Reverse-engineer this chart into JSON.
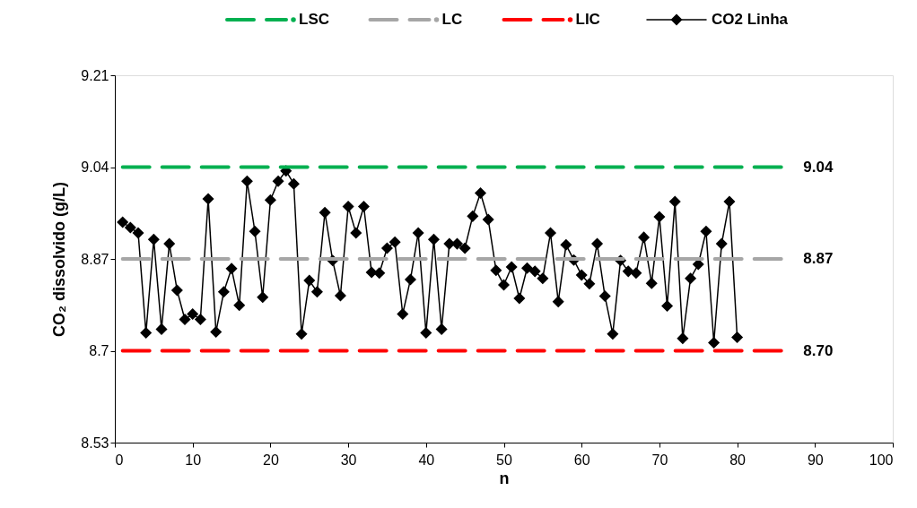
{
  "chart_data": {
    "type": "line",
    "xlabel": "n",
    "ylabel": "CO₂ dissolvido (g/L)",
    "xlim": [
      0,
      100
    ],
    "xticks": [
      0,
      10,
      20,
      30,
      40,
      50,
      60,
      70,
      80,
      90,
      100
    ],
    "ylim": [
      8.53,
      9.21
    ],
    "yticks": [
      8.53,
      8.7,
      8.87,
      9.04,
      9.21
    ],
    "grid": false,
    "legend": "top",
    "marker": "diamond",
    "line_style": "solid",
    "series": [
      {
        "name": "CO2  Linha",
        "color": "#000000",
        "x": [
          1,
          2,
          3,
          4,
          5,
          6,
          7,
          8,
          9,
          10,
          11,
          12,
          13,
          14,
          15,
          16,
          17,
          18,
          19,
          20,
          21,
          22,
          23,
          24,
          25,
          26,
          27,
          28,
          29,
          30,
          31,
          32,
          33,
          34,
          35,
          36,
          37,
          38,
          39,
          40,
          41,
          42,
          43,
          44,
          45,
          46,
          47,
          48,
          49,
          50,
          51,
          52,
          53,
          54,
          55,
          56,
          57,
          58,
          59,
          60,
          61,
          62,
          63,
          64,
          65,
          66,
          67,
          68,
          69,
          70,
          71,
          72,
          73,
          74,
          75,
          76,
          77,
          78,
          79,
          80
        ],
        "values": [
          8.938,
          8.928,
          8.918,
          8.733,
          8.906,
          8.74,
          8.898,
          8.812,
          8.758,
          8.768,
          8.758,
          8.981,
          8.735,
          8.809,
          8.852,
          8.784,
          9.014,
          8.921,
          8.799,
          8.979,
          9.014,
          9.033,
          9.009,
          8.731,
          8.83,
          8.809,
          8.956,
          8.867,
          8.802,
          8.967,
          8.918,
          8.967,
          8.845,
          8.844,
          8.89,
          8.901,
          8.768,
          8.832,
          8.918,
          8.733,
          8.906,
          8.74,
          8.898,
          8.898,
          8.89,
          8.949,
          8.992,
          8.943,
          8.849,
          8.822,
          8.855,
          8.797,
          8.853,
          8.847,
          8.834,
          8.918,
          8.791,
          8.896,
          8.868,
          8.84,
          8.824,
          8.898,
          8.801,
          8.731,
          8.867,
          8.847,
          8.844,
          8.91,
          8.825,
          8.948,
          8.783,
          8.976,
          8.723,
          8.834,
          8.86,
          8.921,
          8.715,
          8.898,
          8.976,
          8.725
        ]
      }
    ],
    "ref_lines": [
      {
        "axis": "y",
        "value": 9.04,
        "label": "LSC",
        "color": "#00b050",
        "line_style": "dashed"
      },
      {
        "axis": "y",
        "value": 8.87,
        "label": "LC",
        "color": "#a6a6a6",
        "line_style": "dashed"
      },
      {
        "axis": "y",
        "value": 8.7,
        "label": "LIC",
        "color": "#ff0000",
        "line_style": "dashed"
      }
    ],
    "annotations": [
      "9.04",
      "8.87",
      "8.70"
    ]
  }
}
